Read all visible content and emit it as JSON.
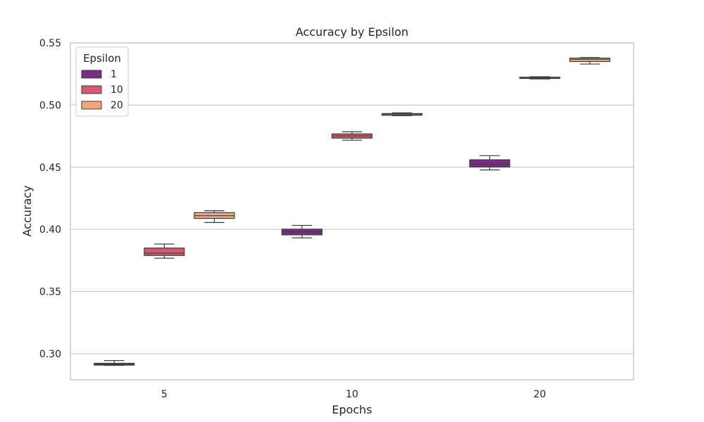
{
  "chart_data": {
    "type": "box",
    "title": "Accuracy by Epsilon",
    "xlabel": "Epochs",
    "ylabel": "Accuracy",
    "categories": [
      "5",
      "10",
      "20"
    ],
    "ylim": [
      0.279,
      0.55
    ],
    "yticks": [
      "0.30",
      "0.35",
      "0.40",
      "0.45",
      "0.50",
      "0.55"
    ],
    "grid": "horizontal",
    "legend": {
      "title": "Epsilon",
      "position": "top-left"
    },
    "series": [
      {
        "name": "1",
        "color": "#7b2c84",
        "boxes": [
          {
            "min": 0.2906,
            "q1": 0.2908,
            "median": 0.2915,
            "q3": 0.2923,
            "max": 0.2945
          },
          {
            "min": 0.3932,
            "q1": 0.3956,
            "median": 0.398,
            "q3": 0.4002,
            "max": 0.4032
          },
          {
            "min": 0.4478,
            "q1": 0.4502,
            "median": 0.4525,
            "q3": 0.456,
            "max": 0.4593
          }
        ]
      },
      {
        "name": "10",
        "color": "#d45a72",
        "boxes": [
          {
            "min": 0.3768,
            "q1": 0.379,
            "median": 0.3808,
            "q3": 0.385,
            "max": 0.3882
          },
          {
            "min": 0.4718,
            "q1": 0.4734,
            "median": 0.4752,
            "q3": 0.4768,
            "max": 0.4785
          },
          {
            "min": 0.521,
            "q1": 0.5214,
            "median": 0.5219,
            "q3": 0.5224,
            "max": 0.5228
          }
        ]
      },
      {
        "name": "20",
        "color": "#f4a67b",
        "boxes": [
          {
            "min": 0.4055,
            "q1": 0.4088,
            "median": 0.411,
            "q3": 0.4135,
            "max": 0.415
          },
          {
            "min": 0.4914,
            "q1": 0.4918,
            "median": 0.4924,
            "q3": 0.4932,
            "max": 0.4938
          },
          {
            "min": 0.533,
            "q1": 0.535,
            "median": 0.5368,
            "q3": 0.5378,
            "max": 0.5382
          }
        ]
      }
    ]
  }
}
